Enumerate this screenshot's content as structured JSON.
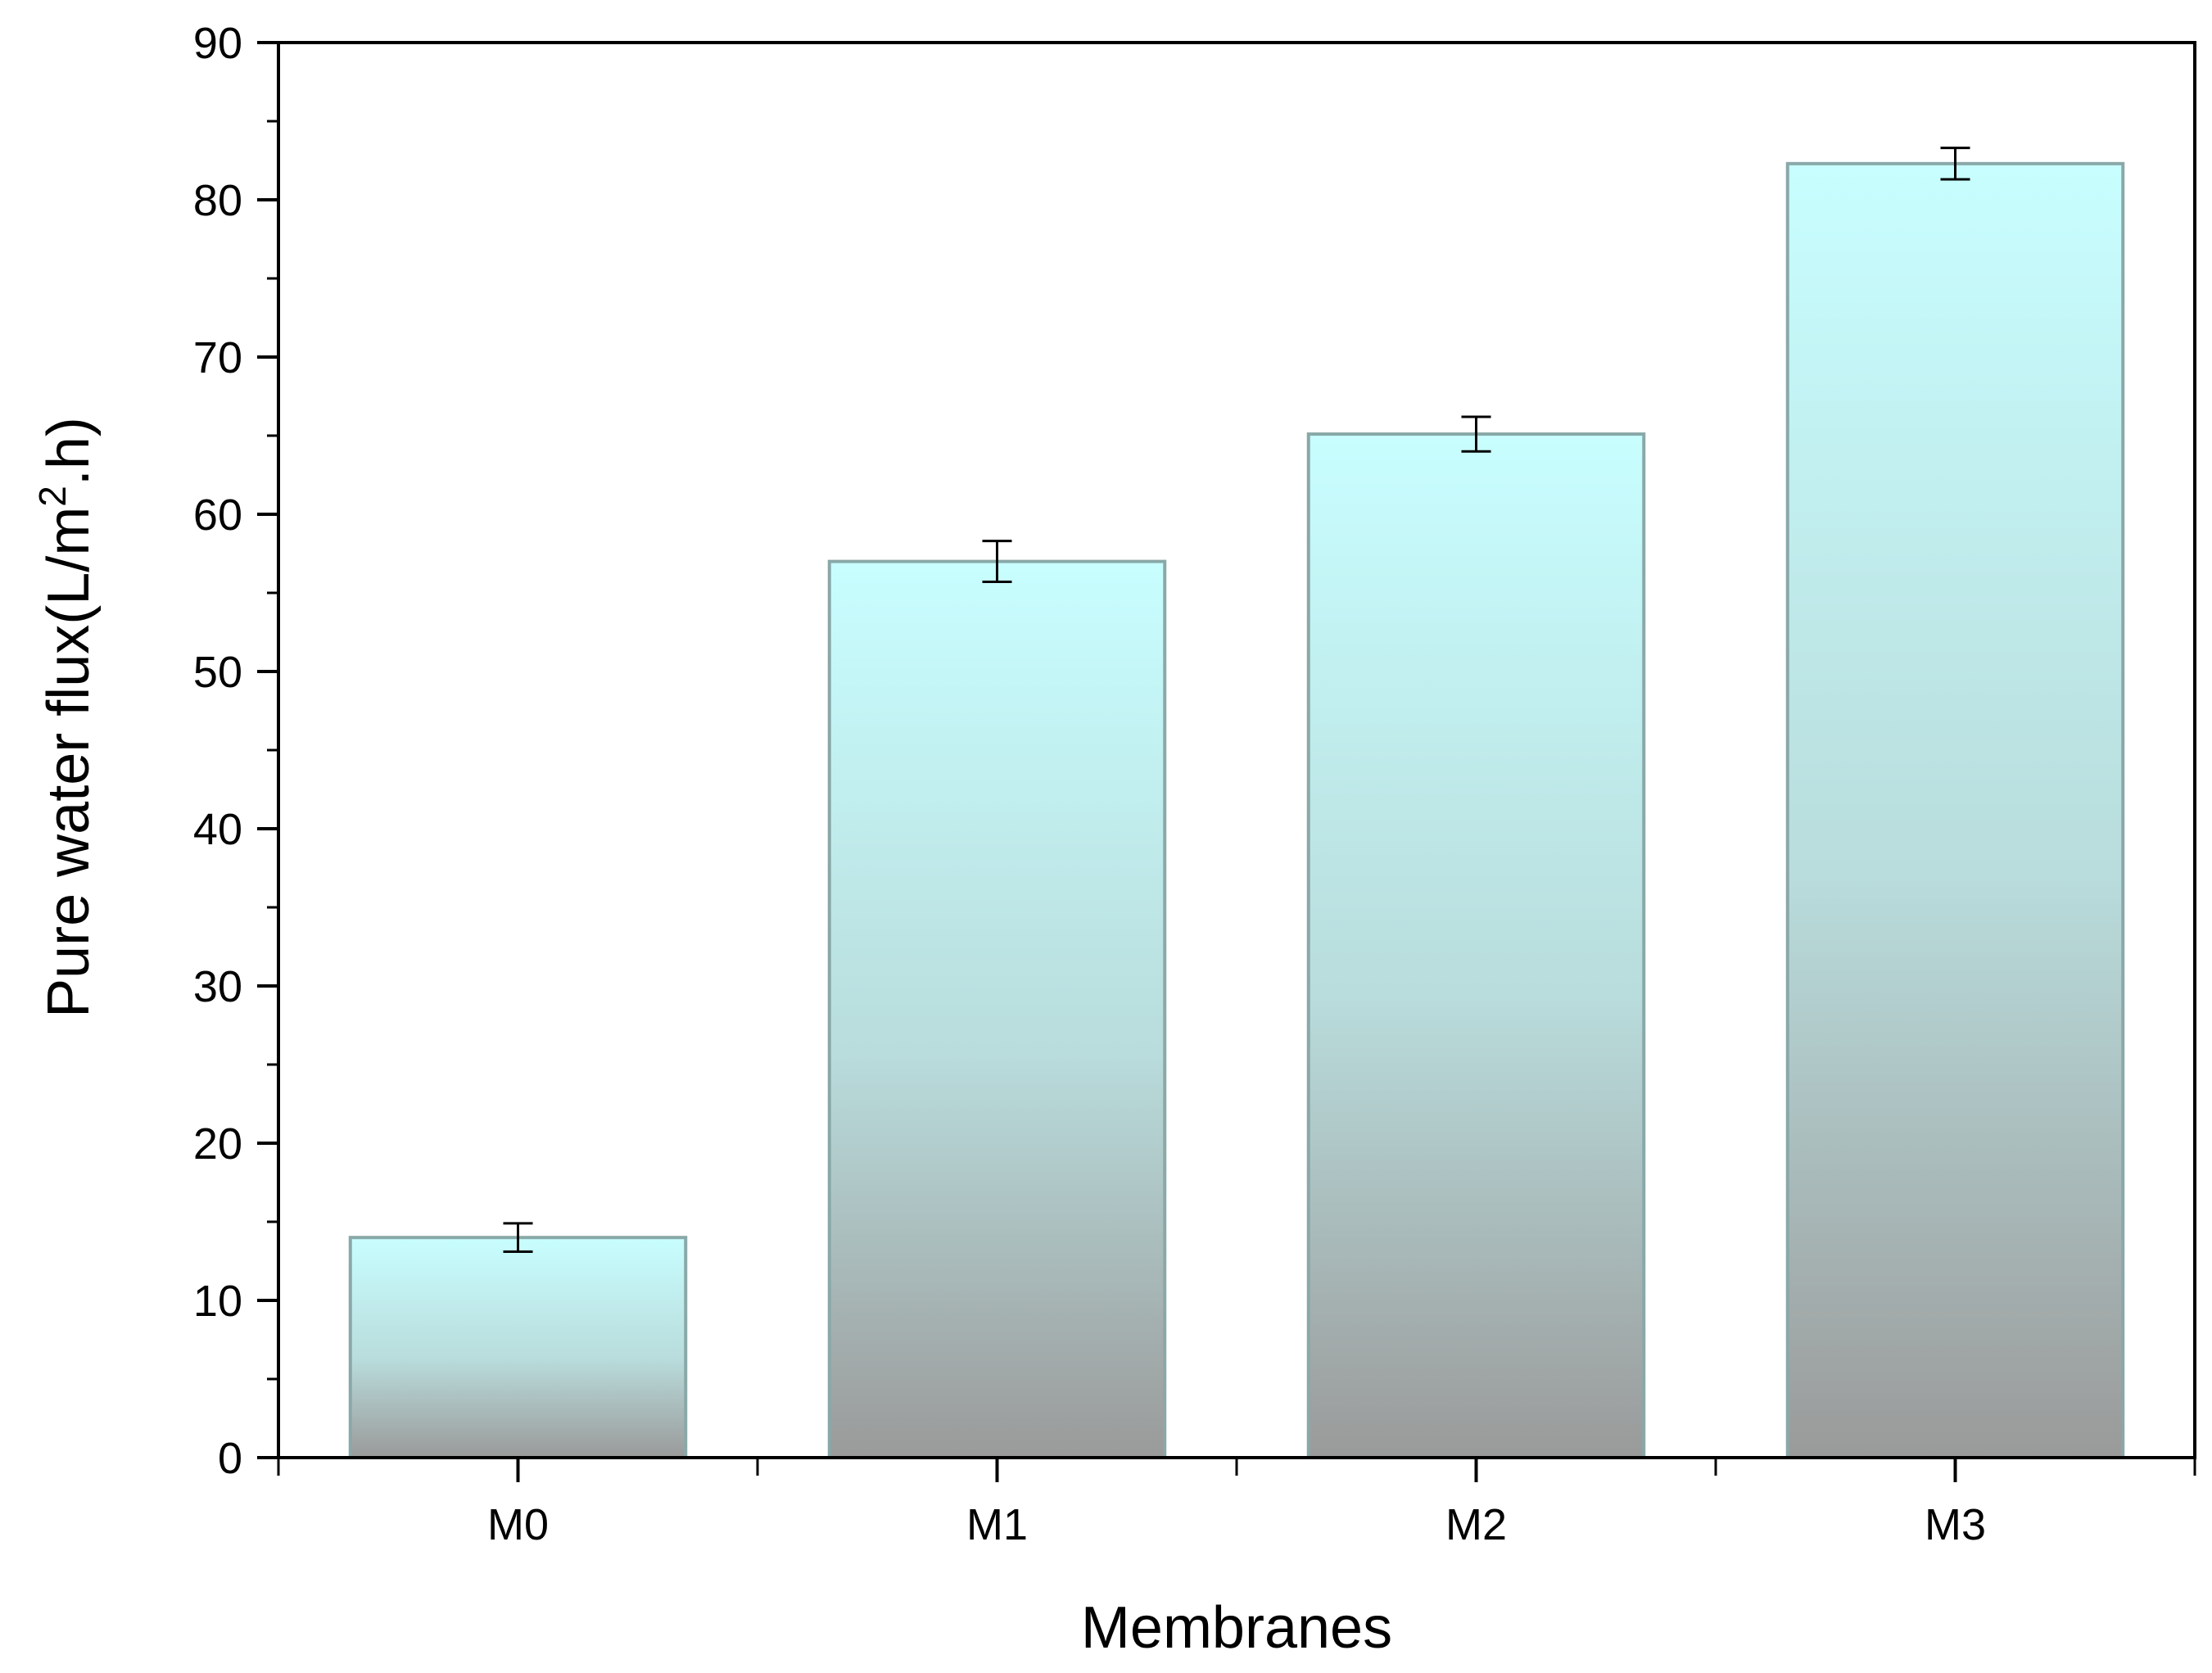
{
  "chart_data": {
    "type": "bar",
    "categories": [
      "M0",
      "M1",
      "M2",
      "M3"
    ],
    "values": [
      14.0,
      57.0,
      65.1,
      82.3
    ],
    "errors": [
      0.9,
      1.3,
      1.1,
      1.0
    ],
    "xlabel": "Membranes",
    "ylabel": {
      "prefix": "Pure water flux(L/m",
      "superscript": "2",
      "suffix": ".h)"
    },
    "ylim": [
      0,
      90
    ],
    "y_ticks": [
      0,
      10,
      20,
      30,
      40,
      50,
      60,
      70,
      80,
      90
    ],
    "y_tick_labels": [
      "0",
      "10",
      "20",
      "30",
      "40",
      "50",
      "60",
      "70",
      "80",
      "90"
    ],
    "grid": false,
    "legend": "none",
    "colors": {
      "bar_top": "#c8feff",
      "bar_bottom": "#9a9a9a",
      "bar_edge": "#8aa8a8",
      "axis": "#000000",
      "error_bar": "#000000"
    }
  }
}
